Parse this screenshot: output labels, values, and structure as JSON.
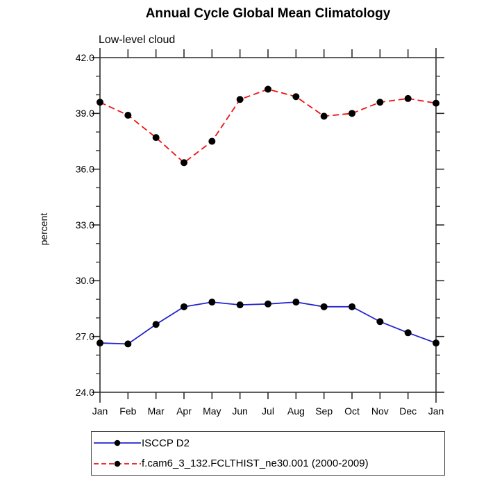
{
  "chart_data": {
    "type": "line",
    "title": "Annual Cycle Global Mean Climatology",
    "subtitle": "Low-level cloud",
    "ylabel": "percent",
    "x_categories": [
      "Jan",
      "Feb",
      "Mar",
      "Apr",
      "May",
      "Jun",
      "Jul",
      "Aug",
      "Sep",
      "Oct",
      "Nov",
      "Dec",
      "Jan"
    ],
    "ylim": [
      24.0,
      42.0
    ],
    "y_major_step": 3.0,
    "y_minor_step": 1.0,
    "y_tick_labels": [
      "24.0",
      "27.0",
      "30.0",
      "33.0",
      "36.0",
      "39.0",
      "42.0"
    ],
    "grid": false,
    "legend_position": "bottom-left",
    "axis_color": "#2b2b2b",
    "marker_color": "#000000",
    "series": [
      {
        "name": "ISCCP D2",
        "color": "#2222cc",
        "line_style": "solid",
        "marker": "circle",
        "values": [
          26.65,
          26.6,
          27.65,
          28.6,
          28.85,
          28.7,
          28.75,
          28.85,
          28.6,
          28.6,
          27.8,
          27.2,
          26.65
        ]
      },
      {
        "name": "f.cam6_3_132.FCLTHIST_ne30.001 (2000-2009)",
        "color": "#ee1111",
        "line_style": "dashed",
        "marker": "circle",
        "values": [
          39.6,
          38.9,
          37.7,
          36.35,
          37.5,
          39.75,
          40.3,
          39.9,
          38.85,
          39.0,
          39.6,
          39.8,
          39.55
        ]
      }
    ]
  }
}
